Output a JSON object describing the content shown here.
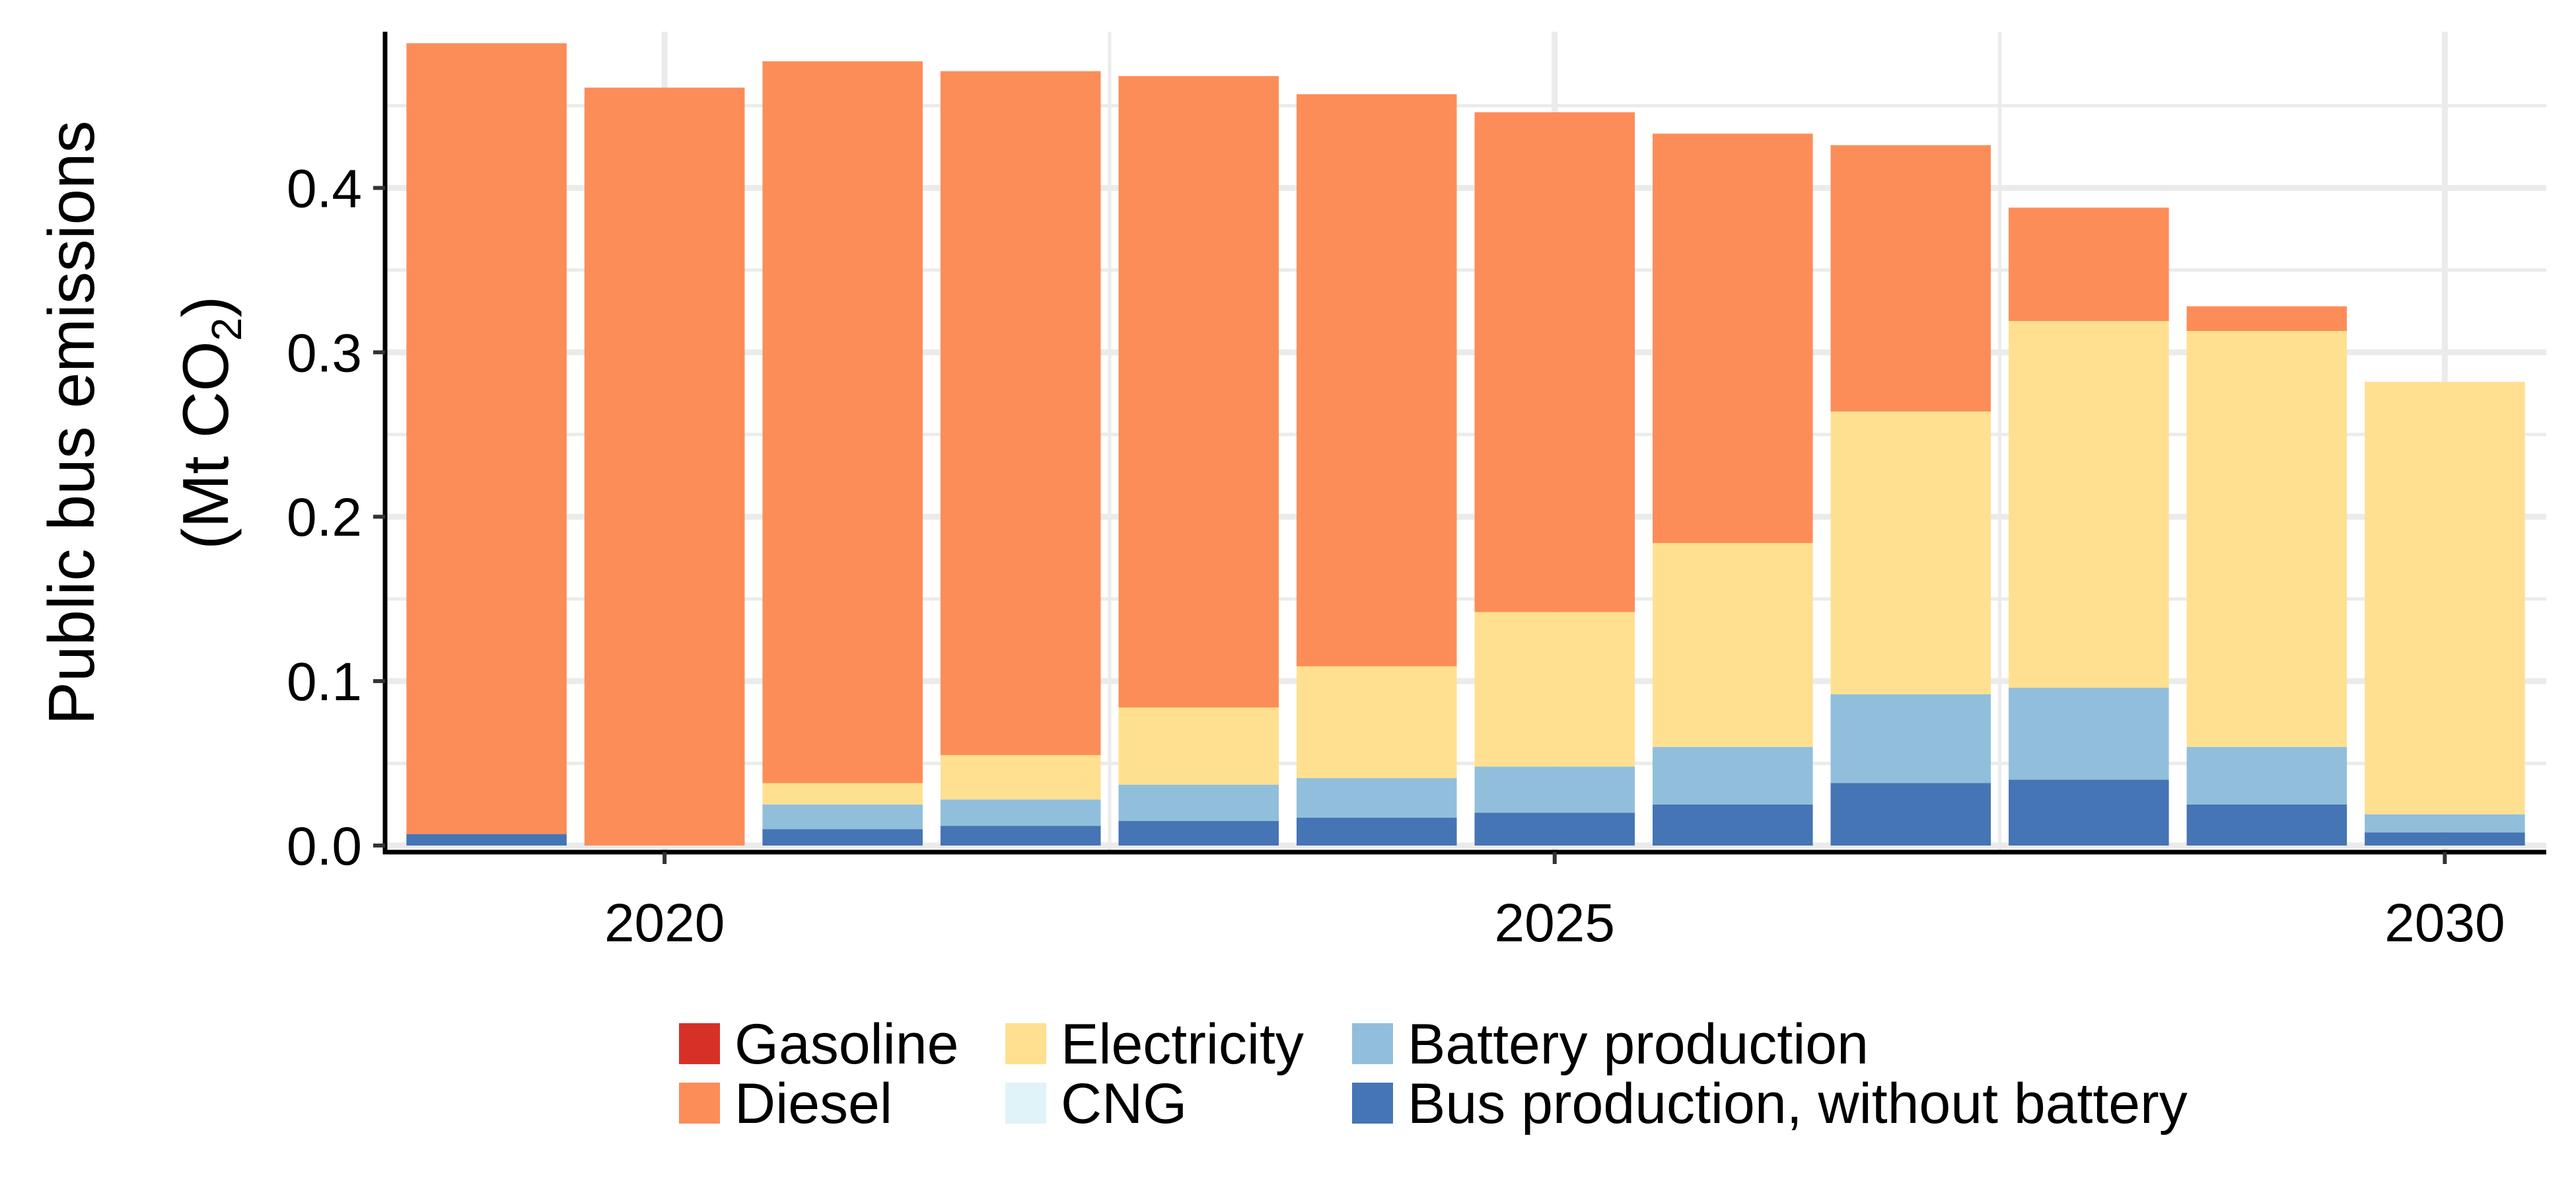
{
  "chart_data": {
    "type": "bar",
    "stacked": true,
    "title": "",
    "xlabel": "",
    "ylabel": {
      "line1": "Public bus emissions",
      "line2_prefix": "(Mt CO",
      "line2_sub": "2",
      "line2_suffix": ")"
    },
    "categories": [
      2019,
      2020,
      2021,
      2022,
      2023,
      2024,
      2025,
      2026,
      2027,
      2028,
      2029,
      2030
    ],
    "xticks": [
      2020,
      2025,
      2030
    ],
    "xlim": [
      2018.43,
      2030.57
    ],
    "ylim": [
      -0.004,
      0.495
    ],
    "yticks": [
      0.0,
      0.1,
      0.2,
      0.3,
      0.4
    ],
    "ytick_labels": [
      "0.0",
      "0.1",
      "0.2",
      "0.3",
      "0.4"
    ],
    "grid": true,
    "legend_position": "bottom",
    "series": [
      {
        "name": "Gasoline",
        "color": "#d73027",
        "values": [
          0,
          0,
          0,
          0,
          0,
          0,
          0,
          0,
          0,
          0,
          0,
          0
        ]
      },
      {
        "name": "Diesel",
        "color": "#fc8d59",
        "values": [
          0.481,
          0.461,
          0.439,
          0.416,
          0.384,
          0.348,
          0.304,
          0.249,
          0.162,
          0.069,
          0.015,
          0
        ]
      },
      {
        "name": "Electricity",
        "color": "#fee090",
        "values": [
          0,
          0,
          0.013,
          0.027,
          0.047,
          0.068,
          0.094,
          0.124,
          0.172,
          0.223,
          0.253,
          0.263
        ]
      },
      {
        "name": "CNG",
        "color": "#e0f3f8",
        "values": [
          0,
          0,
          0,
          0,
          0,
          0,
          0,
          0,
          0,
          0,
          0,
          0
        ]
      },
      {
        "name": "Battery production",
        "color": "#91bfdb",
        "values": [
          0,
          0,
          0.015,
          0.016,
          0.022,
          0.024,
          0.028,
          0.035,
          0.054,
          0.056,
          0.035,
          0.011
        ]
      },
      {
        "name": "Bus production, without battery",
        "color": "#4575b4",
        "values": [
          0.007,
          0,
          0.01,
          0.012,
          0.015,
          0.017,
          0.02,
          0.025,
          0.038,
          0.04,
          0.025,
          0.008
        ]
      }
    ]
  }
}
